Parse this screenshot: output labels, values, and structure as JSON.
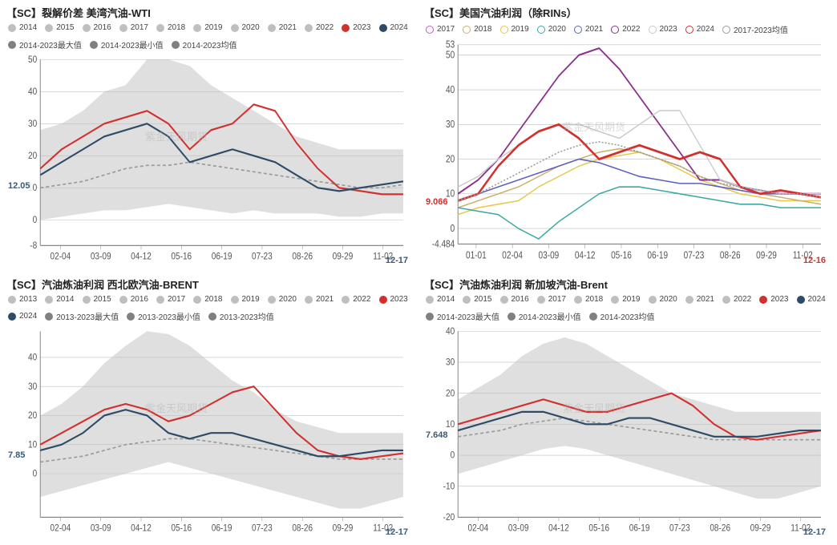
{
  "watermark_text": "紫金天风期货",
  "panels": [
    {
      "id": "tl",
      "title": "【SC】裂解价差 美湾汽油-WTI",
      "end_date": "12-17",
      "end_date_color": "#3a5a78",
      "last_value_label": "12.05",
      "last_value_color": "#3a5a78",
      "type": "line",
      "ylim": [
        -8,
        50
      ],
      "yticks": [
        -8,
        0,
        10,
        20,
        30,
        40,
        50
      ],
      "xticks": [
        "02-04",
        "03-09",
        "04-12",
        "05-16",
        "06-19",
        "07-23",
        "08-26",
        "09-29",
        "11-02"
      ],
      "background": "#ffffff",
      "grid_color": "#bfbfbf",
      "axis_color": "#888888",
      "band_fill": "#d9d9d9",
      "band_max": [
        28,
        30,
        34,
        40,
        42,
        50,
        50,
        48,
        42,
        38,
        34,
        30,
        26,
        24,
        22,
        22,
        22,
        22
      ],
      "band_min": [
        0,
        1,
        2,
        3,
        3,
        4,
        5,
        4,
        3,
        2,
        3,
        2,
        2,
        2,
        1,
        1,
        2,
        2
      ],
      "legend": [
        {
          "label": "2014",
          "color": "#bfbfbf",
          "style": "dot"
        },
        {
          "label": "2015",
          "color": "#bfbfbf",
          "style": "dot"
        },
        {
          "label": "2016",
          "color": "#bfbfbf",
          "style": "dot"
        },
        {
          "label": "2017",
          "color": "#bfbfbf",
          "style": "dot"
        },
        {
          "label": "2018",
          "color": "#bfbfbf",
          "style": "dot"
        },
        {
          "label": "2019",
          "color": "#bfbfbf",
          "style": "dot"
        },
        {
          "label": "2020",
          "color": "#bfbfbf",
          "style": "dot"
        },
        {
          "label": "2021",
          "color": "#bfbfbf",
          "style": "dot"
        },
        {
          "label": "2022",
          "color": "#bfbfbf",
          "style": "dot"
        },
        {
          "label": "2023",
          "color": "#d1302f",
          "style": "dot"
        },
        {
          "label": "2024",
          "color": "#2d4a66",
          "style": "dot"
        },
        {
          "label": "2014-2023最大值",
          "color": "#808080",
          "style": "dot"
        },
        {
          "label": "2014-2023最小值",
          "color": "#808080",
          "style": "dot"
        },
        {
          "label": "2014-2023均值",
          "color": "#808080",
          "style": "dot"
        }
      ],
      "series": [
        {
          "name": "avg",
          "color": "#9a9a9a",
          "dash": "4 3",
          "width": 1.4,
          "y": [
            10,
            11,
            12,
            14,
            16,
            17,
            17,
            18,
            17,
            16,
            15,
            14,
            13,
            12,
            11,
            10,
            10,
            11
          ]
        },
        {
          "name": "2023",
          "color": "#d1302f",
          "dash": "",
          "width": 1.8,
          "y": [
            16,
            22,
            26,
            30,
            32,
            34,
            30,
            22,
            28,
            30,
            36,
            34,
            24,
            16,
            10,
            9,
            8,
            8
          ]
        },
        {
          "name": "2024",
          "color": "#2d4a66",
          "dash": "",
          "width": 1.8,
          "y": [
            14,
            18,
            22,
            26,
            28,
            30,
            26,
            18,
            20,
            22,
            20,
            18,
            14,
            10,
            9,
            10,
            11,
            12
          ]
        }
      ],
      "line_width_default": 1.6,
      "font_size_axis": 10,
      "font_size_title": 13
    },
    {
      "id": "tr",
      "title": "【SC】美国汽油利润（除RINs）",
      "end_date": "12-16",
      "end_date_color": "#d1302f",
      "last_value_label": "9.066",
      "last_value_color": "#d1302f",
      "type": "line",
      "ylim": [
        -4.484,
        53
      ],
      "yticks": [
        -4.484,
        0,
        10,
        20,
        30,
        40,
        50,
        53
      ],
      "xticks": [
        "01-01",
        "02-04",
        "03-09",
        "04-12",
        "05-16",
        "06-19",
        "07-23",
        "08-26",
        "09-29",
        "11-02"
      ],
      "background": "#ffffff",
      "grid_color": "#bfbfbf",
      "axis_color": "#888888",
      "band_fill": null,
      "legend": [
        {
          "label": "2017",
          "color": "#c259c2",
          "style": "circle"
        },
        {
          "label": "2018",
          "color": "#c9b06a",
          "style": "circle"
        },
        {
          "label": "2019",
          "color": "#e6c84b",
          "style": "circle"
        },
        {
          "label": "2020",
          "color": "#3aa9a0",
          "style": "circle"
        },
        {
          "label": "2021",
          "color": "#5a5fbf",
          "style": "circle"
        },
        {
          "label": "2022",
          "color": "#8a2f8a",
          "style": "circle"
        },
        {
          "label": "2023",
          "color": "#c9c9c9",
          "style": "circle"
        },
        {
          "label": "2024",
          "color": "#d1302f",
          "style": "circle"
        },
        {
          "label": "2017-2023均值",
          "color": "#9a9a9a",
          "style": "circle"
        }
      ],
      "series": [
        {
          "name": "2019",
          "color": "#e6c84b",
          "dash": "",
          "width": 1.2,
          "y": [
            4,
            6,
            7,
            8,
            12,
            15,
            18,
            20,
            21,
            22,
            20,
            17,
            14,
            12,
            10,
            9,
            8,
            8,
            8
          ]
        },
        {
          "name": "2018",
          "color": "#c9b06a",
          "dash": "",
          "width": 1.2,
          "y": [
            6,
            8,
            10,
            12,
            15,
            18,
            20,
            22,
            23,
            22,
            20,
            18,
            15,
            13,
            11,
            10,
            9,
            8,
            7
          ]
        },
        {
          "name": "2020",
          "color": "#3aa9a0",
          "dash": "",
          "width": 1.2,
          "y": [
            6,
            5,
            4,
            0,
            -3,
            2,
            6,
            10,
            12,
            12,
            11,
            10,
            9,
            8,
            7,
            7,
            6,
            6,
            6
          ]
        },
        {
          "name": "2021",
          "color": "#5a5fbf",
          "dash": "",
          "width": 1.2,
          "y": [
            8,
            10,
            12,
            14,
            16,
            18,
            20,
            19,
            17,
            15,
            14,
            13,
            13,
            12,
            11,
            10,
            10,
            10,
            10
          ]
        },
        {
          "name": "2022",
          "color": "#8a2f8a",
          "dash": "",
          "width": 1.6,
          "y": [
            10,
            14,
            20,
            28,
            36,
            44,
            50,
            52,
            46,
            38,
            30,
            22,
            14,
            14,
            12,
            11,
            10,
            10,
            10
          ]
        },
        {
          "name": "2023",
          "color": "#c9c9c9",
          "dash": "",
          "width": 1.2,
          "y": [
            12,
            15,
            20,
            24,
            28,
            30,
            30,
            28,
            26,
            30,
            34,
            34,
            24,
            14,
            12,
            11,
            10,
            10,
            10
          ]
        },
        {
          "name": "2024",
          "color": "#d1302f",
          "dash": "",
          "width": 2.2,
          "y": [
            8,
            10,
            18,
            24,
            28,
            30,
            26,
            20,
            22,
            24,
            22,
            20,
            22,
            20,
            12,
            10,
            11,
            10,
            9
          ]
        },
        {
          "name": "avg",
          "color": "#9a9a9a",
          "dash": "2 2",
          "width": 1.2,
          "y": [
            8,
            10,
            13,
            16,
            19,
            22,
            24,
            25,
            24,
            22,
            20,
            18,
            15,
            13,
            12,
            11,
            10,
            10,
            9
          ]
        }
      ],
      "line_width_default": 1.4,
      "marker": "circle",
      "font_size_axis": 10,
      "font_size_title": 13
    },
    {
      "id": "bl",
      "title": "【SC】汽油炼油利润 西北欧汽油-BRENT",
      "end_date": "12-17",
      "end_date_color": "#3a5a78",
      "last_value_label": "7.85",
      "last_value_color": "#3a5a78",
      "type": "line",
      "ylim": [
        -15,
        49
      ],
      "yticks": [
        0,
        10,
        20,
        30,
        40
      ],
      "xticks": [
        "02-04",
        "03-09",
        "04-12",
        "05-16",
        "06-19",
        "07-23",
        "08-26",
        "09-29",
        "11-02"
      ],
      "background": "#ffffff",
      "grid_color": "#bfbfbf",
      "axis_color": "#888888",
      "band_fill": "#d9d9d9",
      "band_max": [
        20,
        24,
        30,
        38,
        44,
        49,
        48,
        44,
        38,
        32,
        28,
        22,
        18,
        16,
        14,
        14,
        14,
        14
      ],
      "band_min": [
        -8,
        -6,
        -4,
        -2,
        0,
        2,
        4,
        2,
        0,
        -2,
        -4,
        -6,
        -8,
        -10,
        -12,
        -12,
        -10,
        -8
      ],
      "legend": [
        {
          "label": "2013",
          "color": "#bfbfbf",
          "style": "dot"
        },
        {
          "label": "2014",
          "color": "#bfbfbf",
          "style": "dot"
        },
        {
          "label": "2015",
          "color": "#bfbfbf",
          "style": "dot"
        },
        {
          "label": "2016",
          "color": "#bfbfbf",
          "style": "dot"
        },
        {
          "label": "2017",
          "color": "#bfbfbf",
          "style": "dot"
        },
        {
          "label": "2018",
          "color": "#bfbfbf",
          "style": "dot"
        },
        {
          "label": "2019",
          "color": "#bfbfbf",
          "style": "dot"
        },
        {
          "label": "2020",
          "color": "#bfbfbf",
          "style": "dot"
        },
        {
          "label": "2021",
          "color": "#bfbfbf",
          "style": "dot"
        },
        {
          "label": "2022",
          "color": "#bfbfbf",
          "style": "dot"
        },
        {
          "label": "2023",
          "color": "#d1302f",
          "style": "dot"
        },
        {
          "label": "2024",
          "color": "#2d4a66",
          "style": "dot"
        },
        {
          "label": "2013-2023最大值",
          "color": "#808080",
          "style": "dot"
        },
        {
          "label": "2013-2023最小值",
          "color": "#808080",
          "style": "dot"
        },
        {
          "label": "2013-2023均值",
          "color": "#808080",
          "style": "dot"
        }
      ],
      "series": [
        {
          "name": "avg",
          "color": "#9a9a9a",
          "dash": "4 3",
          "width": 1.4,
          "y": [
            4,
            5,
            6,
            8,
            10,
            11,
            12,
            12,
            11,
            10,
            9,
            8,
            7,
            6,
            5,
            5,
            5,
            5
          ]
        },
        {
          "name": "2023",
          "color": "#d1302f",
          "dash": "",
          "width": 1.8,
          "y": [
            10,
            14,
            18,
            22,
            24,
            22,
            18,
            20,
            24,
            28,
            30,
            22,
            14,
            8,
            6,
            5,
            6,
            7
          ]
        },
        {
          "name": "2024",
          "color": "#2d4a66",
          "dash": "",
          "width": 1.8,
          "y": [
            8,
            10,
            14,
            20,
            22,
            20,
            14,
            12,
            14,
            14,
            12,
            10,
            8,
            6,
            6,
            7,
            8,
            8
          ]
        }
      ],
      "line_width_default": 1.6,
      "font_size_axis": 10,
      "font_size_title": 13
    },
    {
      "id": "br",
      "title": "【SC】汽油炼油利润 新加坡汽油-Brent",
      "end_date": "12-17",
      "end_date_color": "#3a5a78",
      "last_value_label": "7.648",
      "last_value_color": "#3a5a78",
      "type": "line",
      "ylim": [
        -20,
        40
      ],
      "yticks": [
        -20,
        -10,
        0,
        10,
        20,
        30,
        40
      ],
      "xticks": [
        "02-04",
        "03-09",
        "04-12",
        "05-16",
        "06-19",
        "07-23",
        "08-26",
        "09-29",
        "11-02"
      ],
      "background": "#ffffff",
      "grid_color": "#bfbfbf",
      "axis_color": "#888888",
      "band_fill": "#d9d9d9",
      "band_max": [
        18,
        22,
        26,
        32,
        36,
        38,
        36,
        32,
        28,
        24,
        20,
        18,
        16,
        14,
        14,
        14,
        14,
        14
      ],
      "band_min": [
        -6,
        -4,
        -2,
        0,
        2,
        3,
        2,
        0,
        -2,
        -4,
        -6,
        -8,
        -10,
        -12,
        -14,
        -14,
        -12,
        -10
      ],
      "legend": [
        {
          "label": "2014",
          "color": "#bfbfbf",
          "style": "dot"
        },
        {
          "label": "2015",
          "color": "#bfbfbf",
          "style": "dot"
        },
        {
          "label": "2016",
          "color": "#bfbfbf",
          "style": "dot"
        },
        {
          "label": "2017",
          "color": "#bfbfbf",
          "style": "dot"
        },
        {
          "label": "2018",
          "color": "#bfbfbf",
          "style": "dot"
        },
        {
          "label": "2019",
          "color": "#bfbfbf",
          "style": "dot"
        },
        {
          "label": "2020",
          "color": "#bfbfbf",
          "style": "dot"
        },
        {
          "label": "2021",
          "color": "#bfbfbf",
          "style": "dot"
        },
        {
          "label": "2022",
          "color": "#bfbfbf",
          "style": "dot"
        },
        {
          "label": "2023",
          "color": "#d1302f",
          "style": "dot"
        },
        {
          "label": "2024",
          "color": "#2d4a66",
          "style": "dot"
        },
        {
          "label": "2014-2023最大值",
          "color": "#808080",
          "style": "dot"
        },
        {
          "label": "2014-2023最小值",
          "color": "#808080",
          "style": "dot"
        },
        {
          "label": "2014-2023均值",
          "color": "#808080",
          "style": "dot"
        }
      ],
      "series": [
        {
          "name": "avg",
          "color": "#9a9a9a",
          "dash": "4 3",
          "width": 1.4,
          "y": [
            6,
            7,
            8,
            10,
            11,
            12,
            11,
            10,
            9,
            8,
            7,
            6,
            5,
            5,
            5,
            5,
            5,
            5
          ]
        },
        {
          "name": "2023",
          "color": "#d1302f",
          "dash": "",
          "width": 1.8,
          "y": [
            10,
            12,
            14,
            16,
            18,
            16,
            14,
            14,
            16,
            18,
            20,
            16,
            10,
            6,
            5,
            6,
            7,
            8
          ]
        },
        {
          "name": "2024",
          "color": "#2d4a66",
          "dash": "",
          "width": 1.8,
          "y": [
            8,
            10,
            12,
            14,
            14,
            12,
            10,
            10,
            12,
            12,
            10,
            8,
            6,
            6,
            6,
            7,
            8,
            8
          ]
        }
      ],
      "line_width_default": 1.6,
      "font_size_axis": 10,
      "font_size_title": 13
    }
  ]
}
